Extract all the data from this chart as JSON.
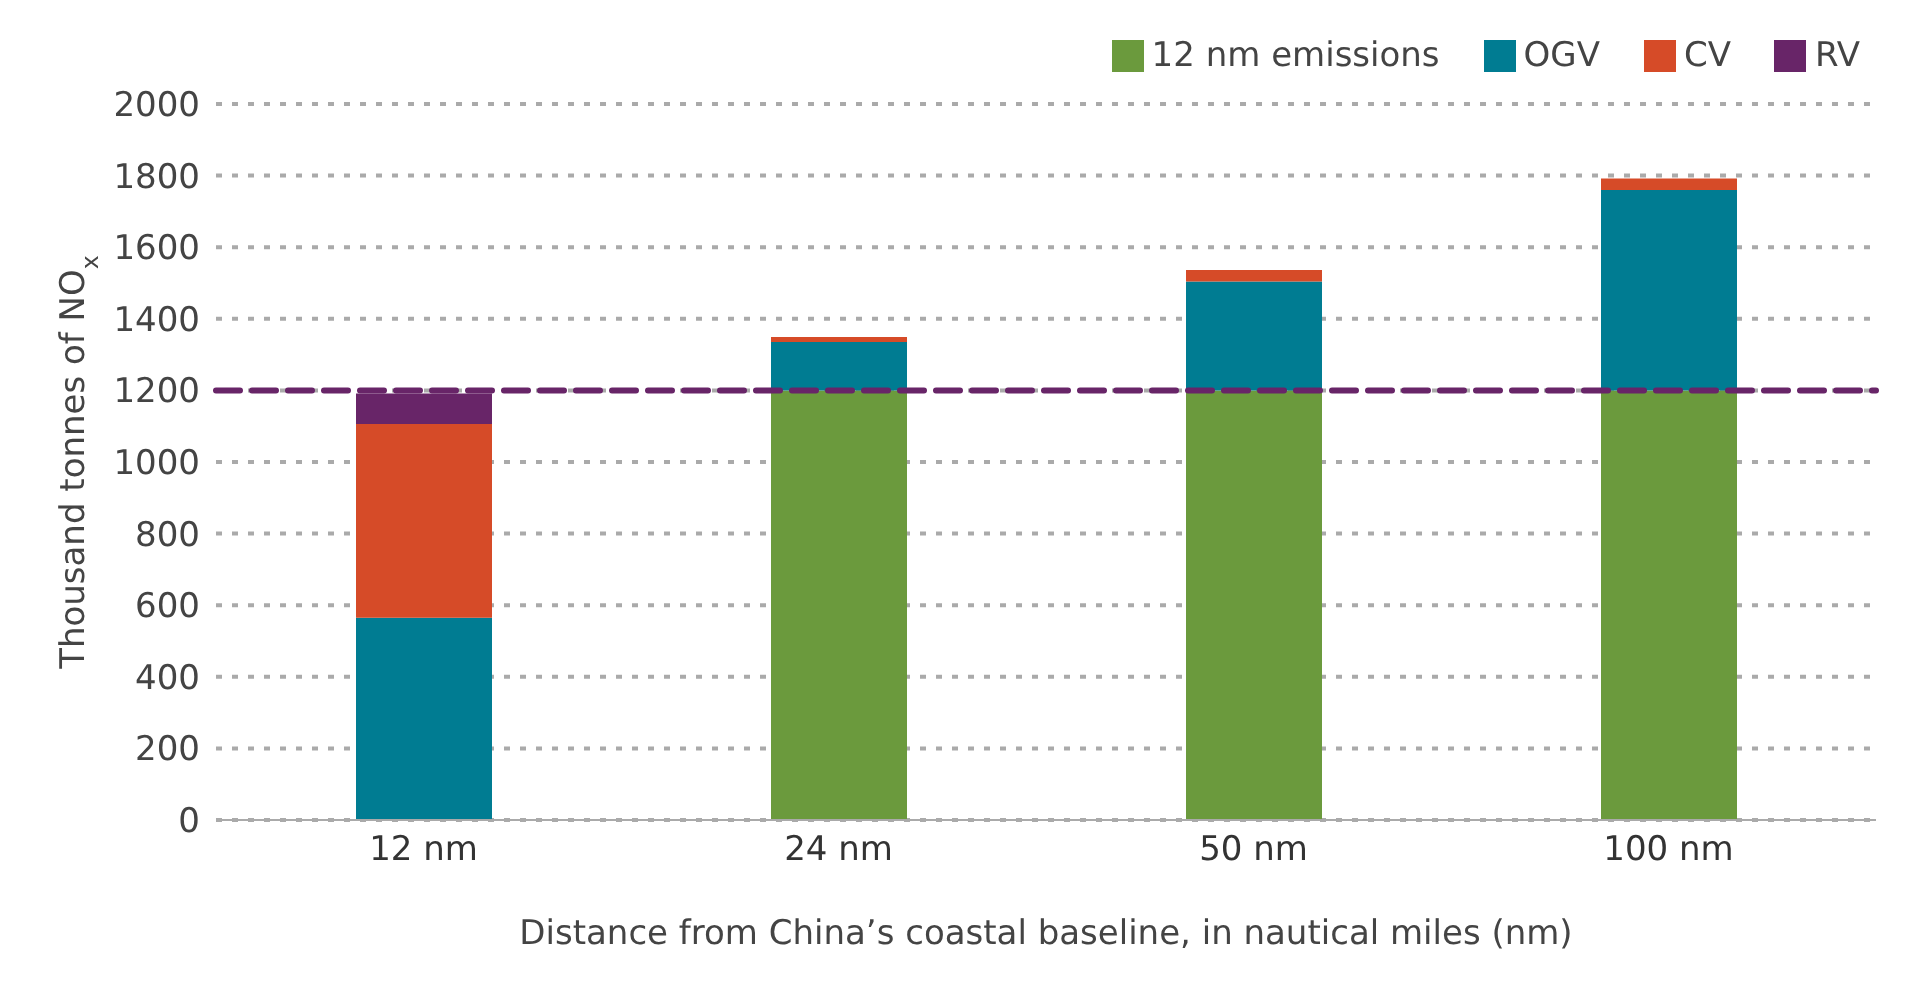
{
  "chart_data": {
    "type": "bar",
    "stacked": true,
    "xlabel": "Distance from China’s coastal baseline, in nautical miles (nm)",
    "ylabel": "Thousand tonnes of NO$_{x}$",
    "categories": [
      "12 nm",
      "24 nm",
      "50 nm",
      "100 nm"
    ],
    "series": [
      {
        "name": "12 nm emissions",
        "color": "#6b9a3d",
        "values": [
          0,
          1200,
          1200,
          1200
        ]
      },
      {
        "name": "OGV",
        "color": "#007c92",
        "values": [
          565,
          135,
          304,
          560
        ]
      },
      {
        "name": "CV",
        "color": "#d64b28",
        "values": [
          541,
          14,
          32,
          32
        ]
      },
      {
        "name": "RV",
        "color": "#682568",
        "values": [
          85,
          0,
          0,
          0
        ]
      }
    ],
    "ylim": [
      0,
      2000
    ],
    "yticks": [
      0,
      200,
      400,
      600,
      800,
      1000,
      1200,
      1400,
      1600,
      1800,
      2000
    ],
    "grid": "y",
    "legend": "top right",
    "ref_lines": [
      {
        "axis": "y",
        "value": 1200,
        "color": "#682568",
        "line_style": "dashed"
      }
    ]
  }
}
